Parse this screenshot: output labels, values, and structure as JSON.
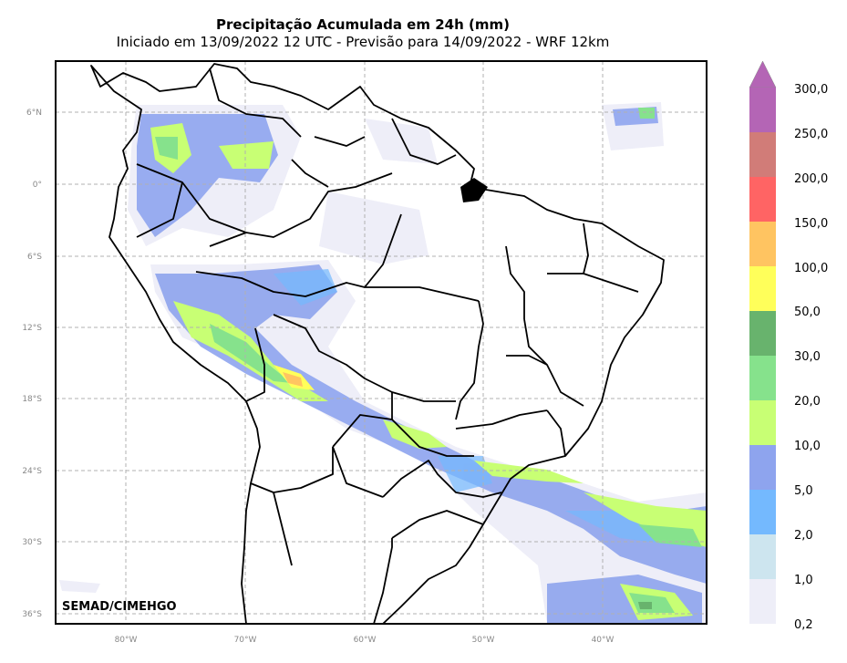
{
  "title": "Precipitação Acumulada em 24h (mm)",
  "subtitle": "Iniciado em 13/09/2022 12 UTC - Previsão para 14/09/2022 - WRF 12km",
  "credit": "SEMAD/CIMEHGO",
  "lat_labels": [
    "6°N",
    "0°",
    "6°S",
    "12°S",
    "18°S",
    "24°S",
    "30°S",
    "36°S"
  ],
  "lon_labels": [
    "80°W",
    "70°W",
    "60°W",
    "50°W",
    "40°W"
  ],
  "colorbar": {
    "labels": [
      "0,2",
      "1,0",
      "2,0",
      "5,0",
      "10,0",
      "20,0",
      "30,0",
      "50,0",
      "100,0",
      "150,0",
      "200,0",
      "250,0",
      "300,0"
    ],
    "colors": [
      "#eeeef8",
      "#cde5ef",
      "#74b9fe",
      "#8ea4ee",
      "#c8ff74",
      "#86e28c",
      "#68b36d",
      "#ffff5a",
      "#ffc461",
      "#ff6464",
      "#d17c78",
      "#b465b5"
    ],
    "extend_color": "#b465b5"
  }
}
